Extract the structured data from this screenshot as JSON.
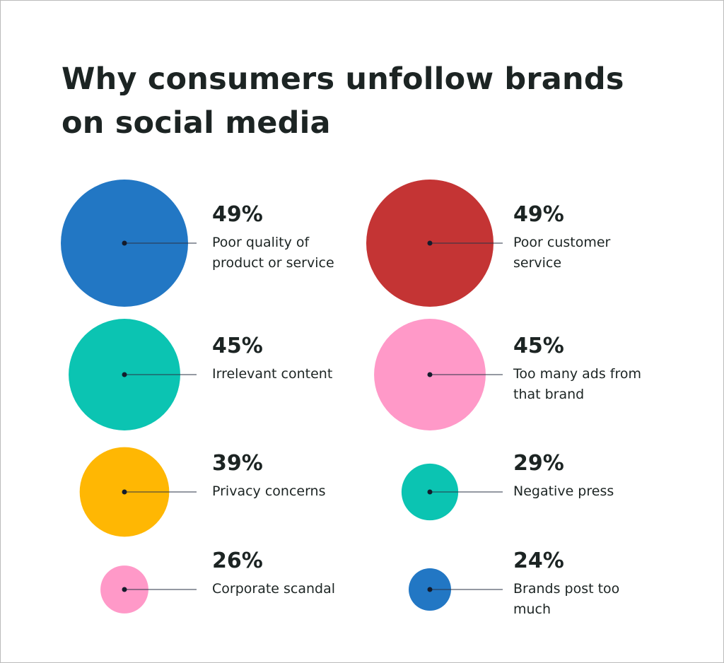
{
  "chart_data": {
    "type": "bubble",
    "title": "Why consumers unfollow brands on social media",
    "categories": [
      "Poor quality of product or service",
      "Poor customer service",
      "Irrelevant content",
      "Too many ads from that brand",
      "Privacy concerns",
      "Negative press",
      "Corporate scandal",
      "Brands post too much"
    ],
    "values": [
      49,
      49,
      45,
      45,
      39,
      29,
      26,
      24
    ],
    "value_labels": [
      "49%",
      "49%",
      "45%",
      "45%",
      "39%",
      "29%",
      "26%",
      "24%"
    ],
    "colors": [
      "#2277c4",
      "#c43434",
      "#0bc4b2",
      "#ff99c8",
      "#ffb703",
      "#0bc4b2",
      "#ff99c8",
      "#2277c4"
    ]
  }
}
